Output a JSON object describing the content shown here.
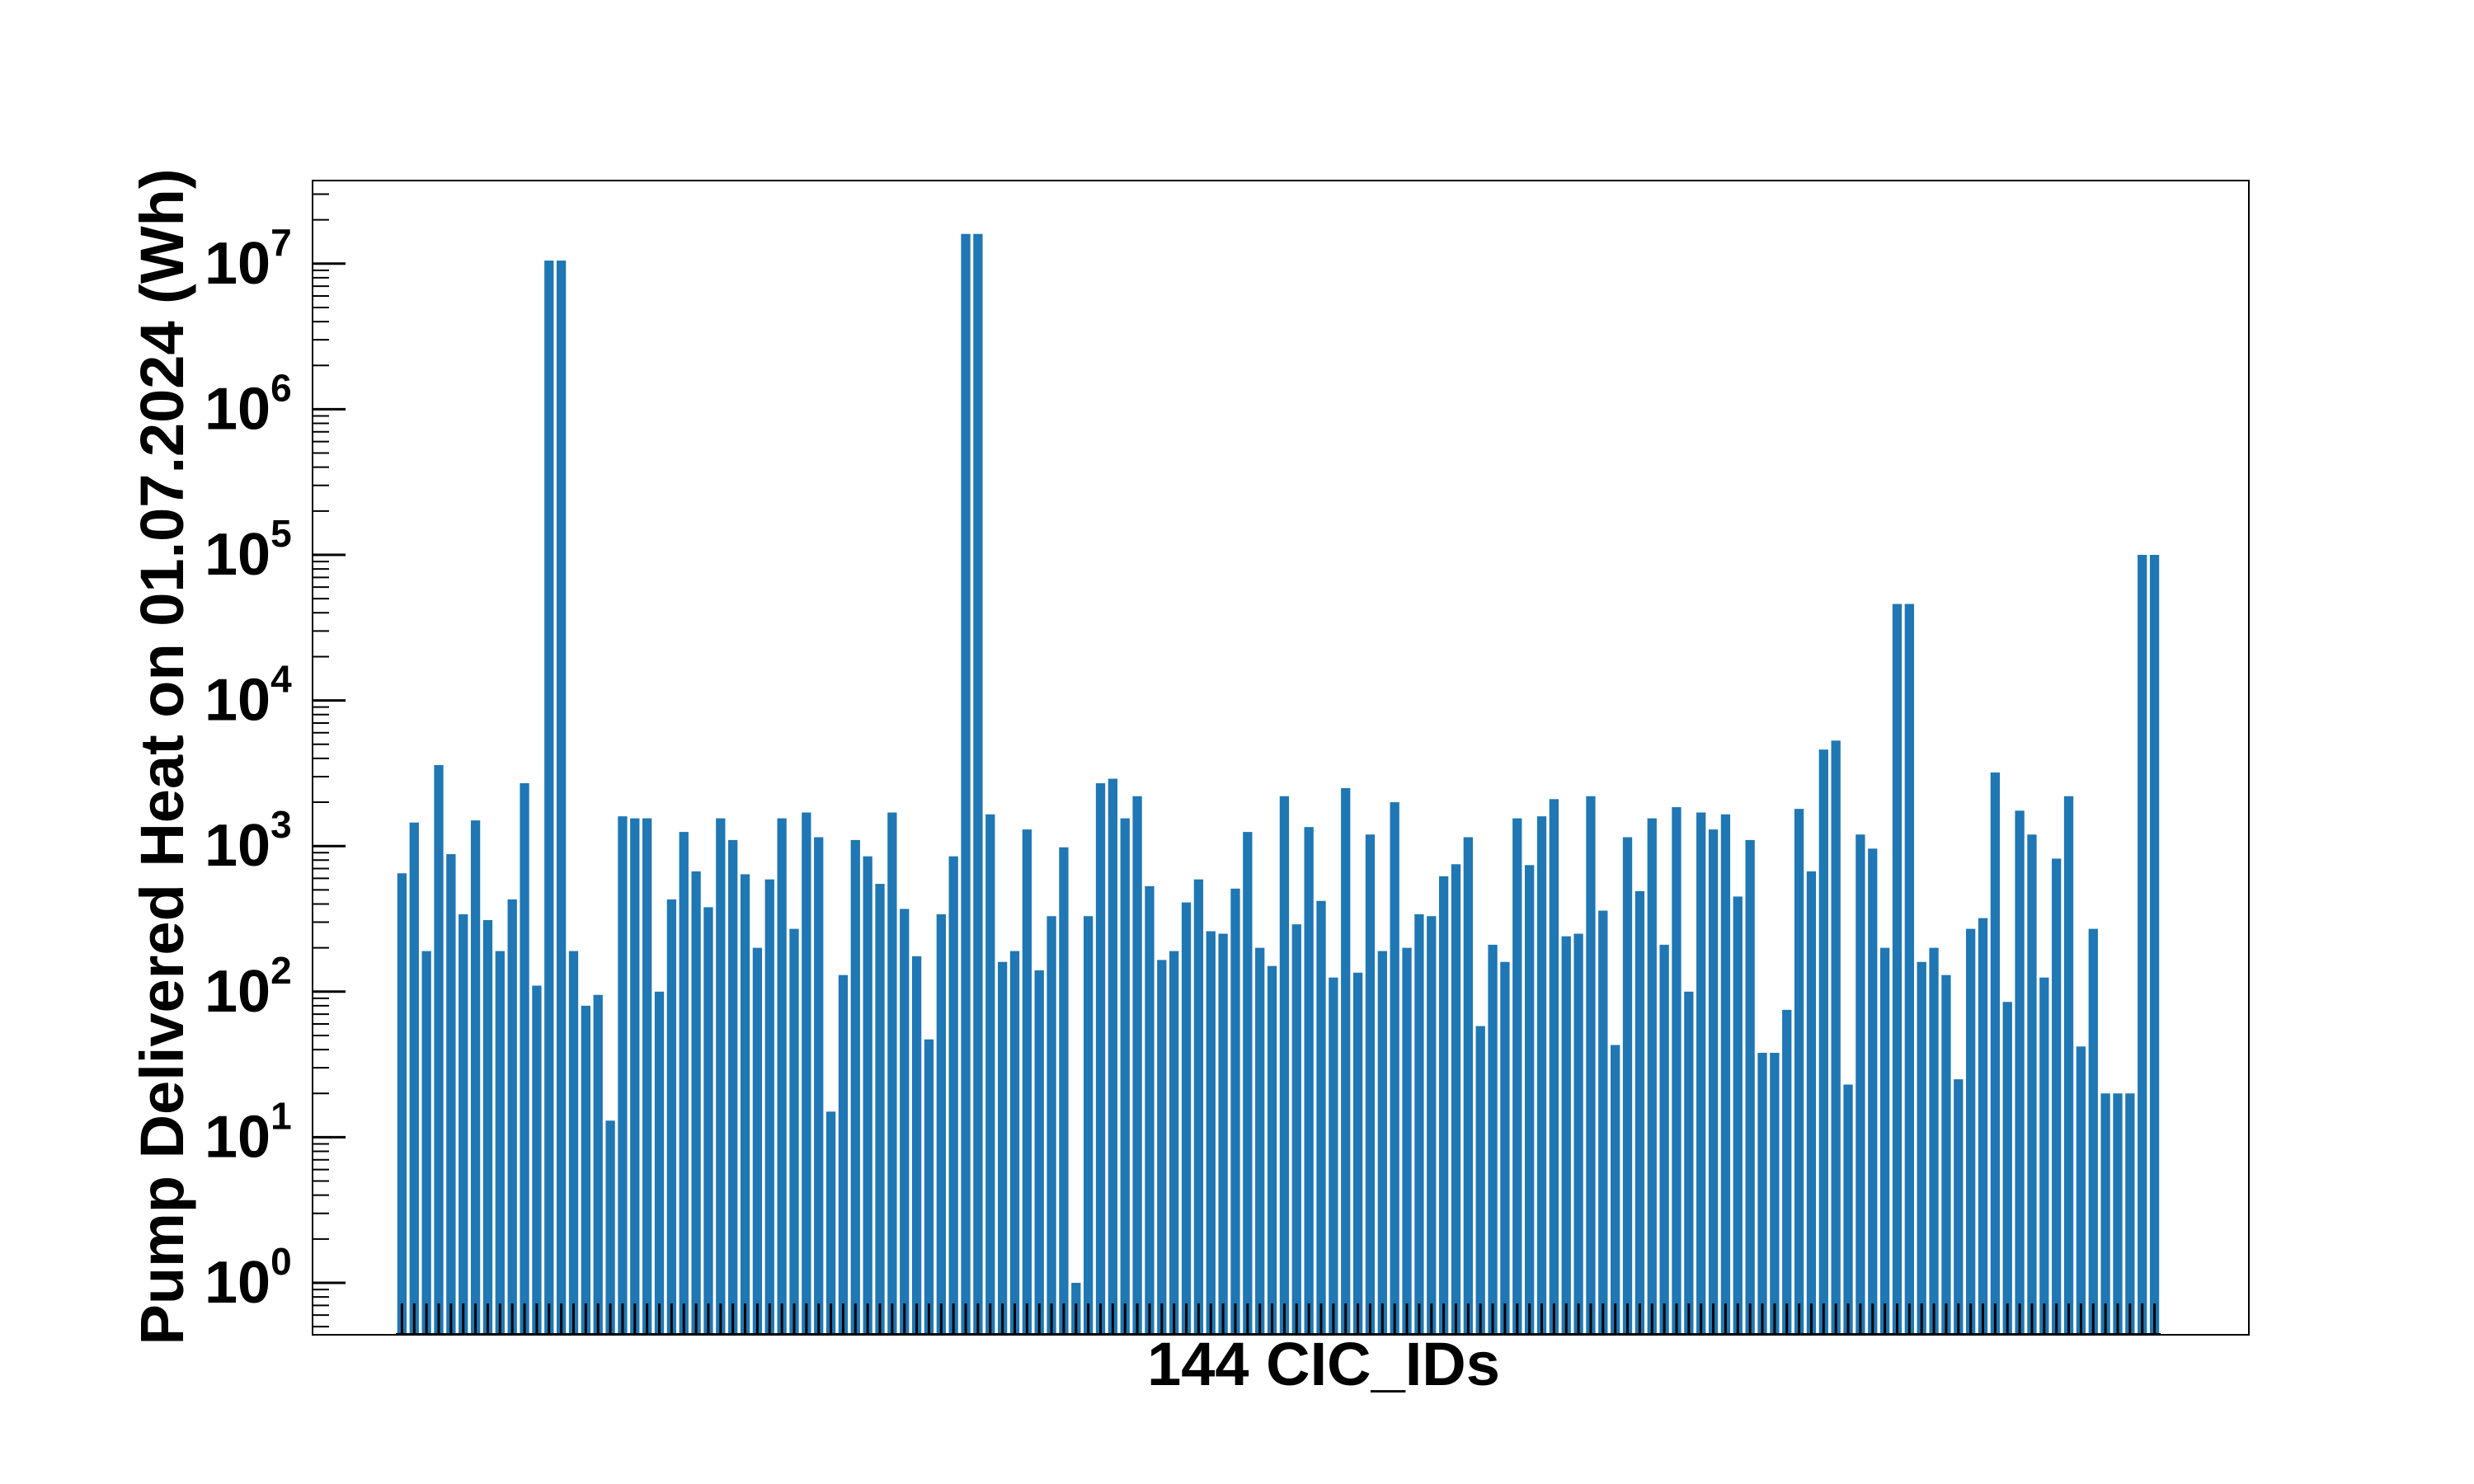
{
  "chart_data": {
    "type": "bar",
    "xlabel": "144 CIC_IDs",
    "ylabel": "Pump Delivered Heat on 01.07.2024 (Wh)",
    "yscale": "log",
    "ylim": [
      0.4,
      35000000
    ],
    "grid": false,
    "bar_color": "#1f77b4",
    "y_ticks": [
      {
        "value": 1,
        "base": "10",
        "exp": "0"
      },
      {
        "value": 10,
        "base": "10",
        "exp": "1"
      },
      {
        "value": 100,
        "base": "10",
        "exp": "2"
      },
      {
        "value": 1000,
        "base": "10",
        "exp": "3"
      },
      {
        "value": 10000,
        "base": "10",
        "exp": "4"
      },
      {
        "value": 100000,
        "base": "10",
        "exp": "5"
      },
      {
        "value": 1000000,
        "base": "10",
        "exp": "6"
      },
      {
        "value": 10000000,
        "base": "10",
        "exp": "7"
      }
    ],
    "values": [
      650,
      1450,
      190,
      3600,
      880,
      340,
      1500,
      310,
      190,
      430,
      2700,
      110,
      10500000,
      10500000,
      190,
      80,
      95,
      13,
      1600,
      1550,
      1550,
      100,
      430,
      1250,
      670,
      380,
      1550,
      1100,
      640,
      200,
      590,
      1550,
      270,
      1700,
      1150,
      15,
      130,
      1100,
      850,
      550,
      1700,
      370,
      175,
      47,
      340,
      850,
      16000000,
      16000000,
      1650,
      160,
      190,
      1300,
      140,
      330,
      980,
      1,
      330,
      2700,
      2900,
      1550,
      2200,
      530,
      165,
      190,
      410,
      590,
      260,
      250,
      510,
      1250,
      200,
      150,
      2200,
      290,
      1350,
      420,
      125,
      2500,
      135,
      1200,
      190,
      2000,
      200,
      340,
      330,
      620,
      750,
      1150,
      58,
      210,
      160,
      1550,
      740,
      1600,
      2100,
      240,
      250,
      2200,
      360,
      43,
      1150,
      490,
      1550,
      210,
      1850,
      100,
      1700,
      1300,
      1650,
      450,
      1100,
      38,
      38,
      75,
      1800,
      670,
      4600,
      5300,
      23,
      1200,
      960,
      200,
      46000,
      46000,
      160,
      200,
      130,
      25,
      270,
      320,
      3200,
      85,
      1750,
      1200,
      125,
      820,
      2200,
      42,
      270,
      20,
      20,
      20,
      100000,
      100000
    ]
  }
}
